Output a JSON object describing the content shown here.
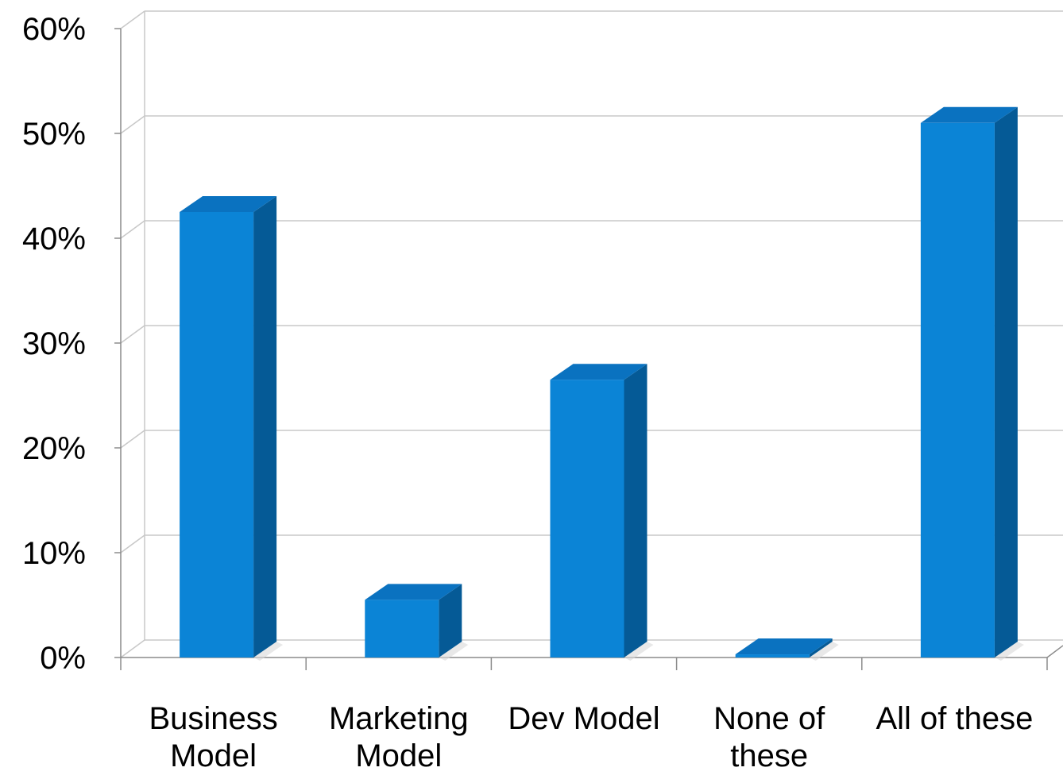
{
  "chart_data": {
    "type": "bar",
    "categories": [
      [
        "Business",
        "Model"
      ],
      [
        "Marketing",
        "Model"
      ],
      [
        "Dev Model"
      ],
      [
        "None of",
        "these"
      ],
      [
        "All of these"
      ]
    ],
    "values": [
      42.5,
      5.5,
      26.5,
      0.3,
      51
    ],
    "y_ticks": [
      "0%",
      "10%",
      "20%",
      "30%",
      "40%",
      "50%",
      "60%"
    ],
    "ylim": [
      0,
      60
    ],
    "grid": true,
    "colors": {
      "bar_front": "#0b84d6",
      "bar_side": "#055a96",
      "bar_top": "#0a72c0"
    }
  }
}
